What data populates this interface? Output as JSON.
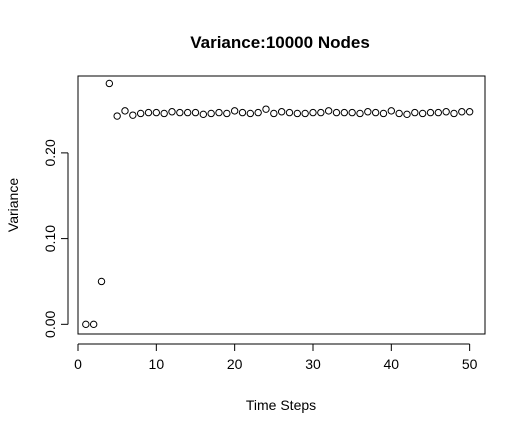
{
  "chart_data": {
    "type": "scatter",
    "title": "Variance:10000 Nodes",
    "xlabel": "Time Steps",
    "ylabel": "Variance",
    "xlim": [
      0,
      51.96
    ],
    "ylim": [
      -0.0113,
      0.2897
    ],
    "x_ticks": [
      0,
      10,
      20,
      30,
      40,
      50
    ],
    "x_tick_labels": [
      "0",
      "10",
      "20",
      "30",
      "40",
      "50"
    ],
    "y_ticks": [
      0.0,
      0.1,
      0.2
    ],
    "y_tick_labels": [
      "0.00",
      "0.10",
      "0.20"
    ],
    "grid": false,
    "marker": "open-circle",
    "colors": {
      "points": "#000000",
      "axes": "#000000",
      "background": "#ffffff"
    },
    "x": [
      1,
      2,
      3,
      4,
      5,
      6,
      7,
      8,
      9,
      10,
      11,
      12,
      13,
      14,
      15,
      16,
      17,
      18,
      19,
      20,
      21,
      22,
      23,
      24,
      25,
      26,
      27,
      28,
      29,
      30,
      31,
      32,
      33,
      34,
      35,
      36,
      37,
      38,
      39,
      40,
      41,
      42,
      43,
      44,
      45,
      46,
      47,
      48,
      49,
      50
    ],
    "y": [
      0.0,
      0.0,
      0.05,
      0.281,
      0.243,
      0.249,
      0.244,
      0.246,
      0.247,
      0.247,
      0.246,
      0.248,
      0.247,
      0.247,
      0.247,
      0.245,
      0.246,
      0.247,
      0.246,
      0.249,
      0.247,
      0.246,
      0.247,
      0.251,
      0.246,
      0.248,
      0.247,
      0.246,
      0.246,
      0.247,
      0.247,
      0.249,
      0.247,
      0.247,
      0.247,
      0.246,
      0.248,
      0.247,
      0.246,
      0.249,
      0.246,
      0.245,
      0.247,
      0.246,
      0.247,
      0.247,
      0.248,
      0.246,
      0.248,
      0.248
    ]
  }
}
